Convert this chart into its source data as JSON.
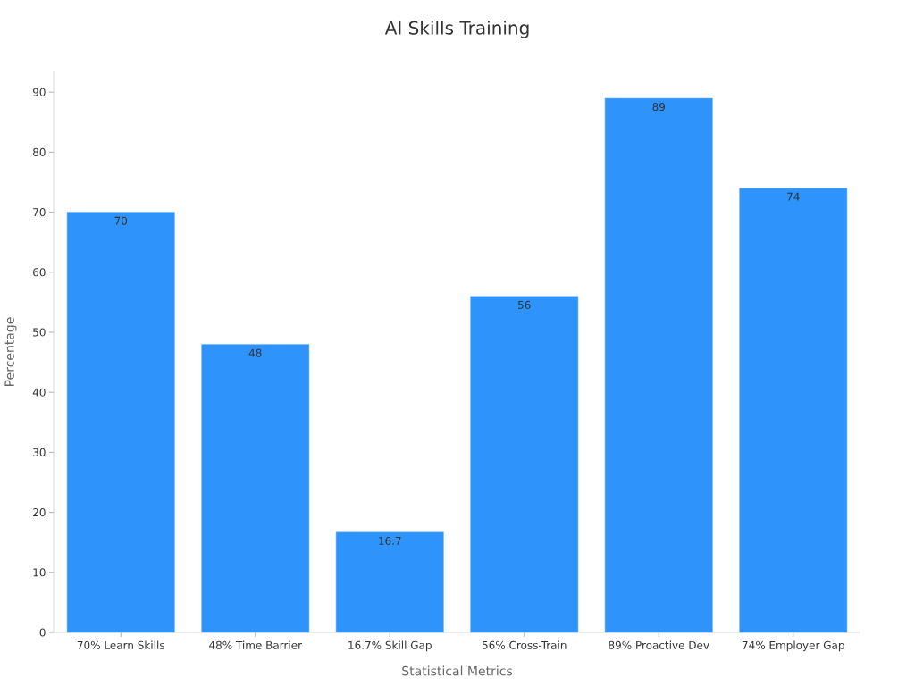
{
  "chart_data": {
    "type": "bar",
    "title": "AI Skills Training",
    "xlabel": "Statistical Metrics",
    "ylabel": "Percentage",
    "categories": [
      "70% Learn Skills",
      "48% Time Barrier",
      "16.7% Skill Gap",
      "56% Cross-Train",
      "89% Proactive Dev",
      "74% Employer Gap"
    ],
    "values": [
      70,
      48,
      16.7,
      56,
      89,
      74
    ],
    "color": "#2e93fa",
    "ylim": [
      0,
      93.45
    ],
    "yticks": [
      0,
      10,
      20,
      30,
      40,
      50,
      60,
      70,
      80,
      90
    ],
    "data_labels": true
  }
}
